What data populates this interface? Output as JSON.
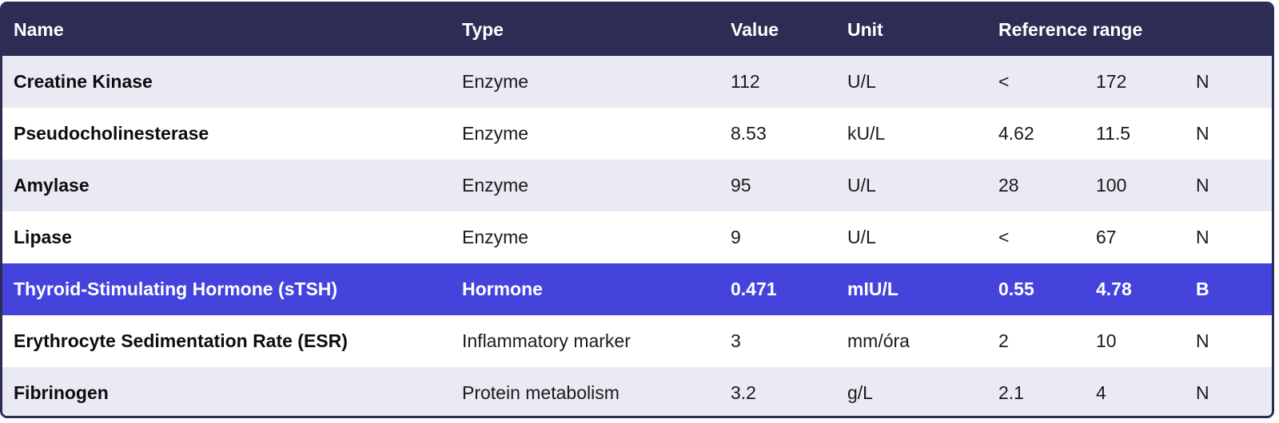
{
  "header": {
    "name": "Name",
    "type": "Type",
    "value": "Value",
    "unit": "Unit",
    "reference_range": "Reference range"
  },
  "rows": [
    {
      "name": "Creatine Kinase",
      "type": "Enzyme",
      "value": "112",
      "unit": "U/L",
      "low": "<",
      "high": "172",
      "flag": "N",
      "highlighted": false
    },
    {
      "name": "Pseudocholinesterase",
      "type": "Enzyme",
      "value": "8.53",
      "unit": "kU/L",
      "low": "4.62",
      "high": "11.5",
      "flag": "N",
      "highlighted": false
    },
    {
      "name": "Amylase",
      "type": "Enzyme",
      "value": "95",
      "unit": "U/L",
      "low": "28",
      "high": "100",
      "flag": "N",
      "highlighted": false
    },
    {
      "name": "Lipase",
      "type": "Enzyme",
      "value": "9",
      "unit": "U/L",
      "low": "<",
      "high": "67",
      "flag": "N",
      "highlighted": false
    },
    {
      "name": "Thyroid-Stimulating Hormone (sTSH)",
      "type": "Hormone",
      "value": "0.471",
      "unit": "mIU/L",
      "low": "0.55",
      "high": "4.78",
      "flag": "B",
      "highlighted": true
    },
    {
      "name": "Erythrocyte Sedimentation Rate (ESR)",
      "type": "Inflammatory marker",
      "value": "3",
      "unit": "mm/óra",
      "low": "2",
      "high": "10",
      "flag": "N",
      "highlighted": false
    },
    {
      "name": "Fibrinogen",
      "type": "Protein metabolism",
      "value": "3.2",
      "unit": "g/L",
      "low": "2.1",
      "high": "4",
      "flag": "N",
      "highlighted": false
    }
  ],
  "colors": {
    "header_bg": "#2c2c54",
    "highlight_bg": "#4444dd",
    "odd_row_bg": "#eaeaf4",
    "even_row_bg": "#ffffff"
  }
}
